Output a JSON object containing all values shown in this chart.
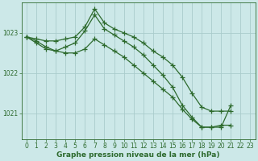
{
  "background_color": "#cce8e8",
  "grid_color": "#aacccc",
  "line_color": "#2d6a2d",
  "marker": "+",
  "markersize": 4,
  "linewidth": 0.9,
  "markeredgewidth": 0.9,
  "xlabel": "Graphe pression niveau de la mer (hPa)",
  "xlabel_fontsize": 6.5,
  "xlabel_bold": true,
  "tick_fontsize": 5.5,
  "xlim": [
    -0.5,
    23.5
  ],
  "ylim": [
    1020.35,
    1023.75
  ],
  "yticks": [
    1021,
    1022,
    1023
  ],
  "xticks": [
    0,
    1,
    2,
    3,
    4,
    5,
    6,
    7,
    8,
    9,
    10,
    11,
    12,
    13,
    14,
    15,
    16,
    17,
    18,
    19,
    20,
    21,
    22,
    23
  ],
  "series": [
    {
      "x": [
        0,
        1,
        2,
        3,
        4,
        5,
        6,
        7,
        8,
        9,
        10,
        11,
        12,
        13,
        14,
        15,
        16,
        17,
        18,
        19,
        20,
        21,
        22,
        23
      ],
      "y": [
        1022.9,
        1022.85,
        1022.8,
        1022.8,
        1022.85,
        1022.9,
        1023.15,
        1023.6,
        1023.25,
        1023.1,
        1023.0,
        1022.9,
        1022.75,
        1022.55,
        1022.4,
        1022.2,
        1021.9,
        1021.5,
        1021.15,
        1021.05,
        1021.05,
        1021.05,
        null,
        null
      ]
    },
    {
      "x": [
        0,
        1,
        2,
        3,
        4,
        5,
        6,
        7,
        8,
        9,
        10,
        11,
        12,
        13,
        14,
        15,
        16,
        17,
        18,
        19,
        20,
        21
      ],
      "y": [
        1022.9,
        1022.75,
        1022.6,
        1022.55,
        1022.65,
        1022.75,
        1023.05,
        1023.45,
        1023.1,
        1022.95,
        1022.8,
        1022.65,
        1022.45,
        1022.2,
        1021.95,
        1021.65,
        1021.2,
        1020.9,
        1020.65,
        1020.65,
        1020.65,
        1021.2
      ]
    },
    {
      "x": [
        0,
        1,
        2,
        3,
        4,
        5,
        6,
        7,
        8,
        9,
        10,
        11,
        12,
        13,
        14,
        15,
        16,
        17,
        18,
        19,
        20,
        21,
        22,
        23
      ],
      "y": [
        1022.9,
        1022.8,
        1022.65,
        1022.55,
        1022.5,
        1022.5,
        1022.6,
        1022.85,
        1022.7,
        1022.55,
        1022.4,
        1022.2,
        1022.0,
        1021.8,
        1021.6,
        1021.4,
        1021.1,
        1020.85,
        1020.65,
        1020.65,
        1020.7,
        1020.7,
        null,
        null
      ]
    }
  ]
}
